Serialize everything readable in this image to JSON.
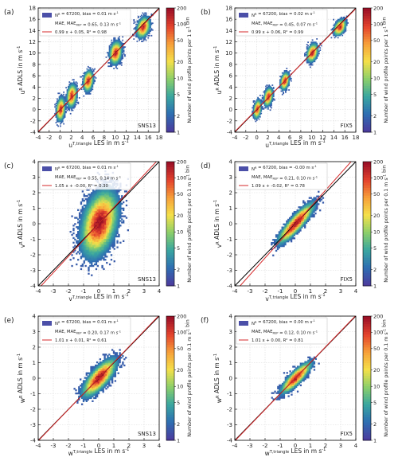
{
  "colors": {
    "identity_line": "#000000",
    "fit_line": "#d62728",
    "legend_patch": "#4b4fa8",
    "grid": "#d9d9d9",
    "colormap": [
      "#ffffff",
      "#4b3c9e",
      "#2e6fb2",
      "#3aa7a0",
      "#8ccf6a",
      "#f4e04a",
      "#f7a13a",
      "#e4432d",
      "#9c1127"
    ]
  },
  "colorbar": {
    "ticks": [
      "1",
      "2",
      "5",
      "10",
      "20",
      "50",
      "100",
      "200"
    ],
    "label_u": "Number of wind profile points per 1 s",
    "label_vw": "Number of wind profile points per 0.1 m s",
    "label_sup": "-1",
    "label_end": " bin"
  },
  "chart_data": [
    {
      "type": "heatmap",
      "panel": "(a)",
      "component": "u",
      "scheme": "SNS13",
      "legend": {
        "n": "N",
        "n_sup": "R",
        "line1": " = 67200, bias = 0.01 m s",
        "line1_sup": "-1",
        "mae_prefix": "MAE, MAE",
        "mae_sub": "REP",
        "mae_values": " = 0.65, 0.13 m s",
        "mae_sup": "-1",
        "fit": "0.99 x + 0.05, R² = 0.98"
      },
      "xlabel": {
        "main": "u",
        "sup": "T,triangle",
        "rest": " LES in m s",
        "unit_sup": "-1"
      },
      "ylabel": {
        "main": "u",
        "sup": "R",
        "rest": " ADLS in m s",
        "unit_sup": "-1"
      },
      "xlim": [
        -4,
        18
      ],
      "ylim": [
        -4,
        18
      ],
      "xticks": [
        -4,
        -2,
        0,
        2,
        4,
        6,
        8,
        10,
        12,
        14,
        16,
        18
      ],
      "fit": {
        "slope": 0.99,
        "intercept": 0.05
      },
      "clusters": [
        {
          "x": 0,
          "y": 0,
          "sx": 0.4,
          "sy": 1.0,
          "rho": 0.2,
          "peak": 0.9
        },
        {
          "x": 2,
          "y": 2.4,
          "sx": 0.45,
          "sy": 1.0,
          "rho": 0.2,
          "peak": 0.9
        },
        {
          "x": 5,
          "y": 5,
          "sx": 0.45,
          "sy": 0.9,
          "rho": 0.2,
          "peak": 0.9
        },
        {
          "x": 10,
          "y": 10,
          "sx": 0.55,
          "sy": 1.0,
          "rho": 0.2,
          "peak": 0.9
        },
        {
          "x": 15,
          "y": 14.5,
          "sx": 0.6,
          "sy": 0.9,
          "rho": 0.3,
          "peak": 0.9
        }
      ]
    },
    {
      "type": "heatmap",
      "panel": "(b)",
      "component": "u",
      "scheme": "FIX5",
      "legend": {
        "n": "N",
        "n_sup": "R",
        "line1": " = 67200, bias = 0.02 m s",
        "line1_sup": "-1",
        "mae_prefix": "MAE, MAE",
        "mae_sub": "REP",
        "mae_values": " = 0.45, 0.07 m s",
        "mae_sup": "-1",
        "fit": "0.99 x + 0.06, R² = 0.99"
      },
      "xlabel": {
        "main": "u",
        "sup": "T,triangle",
        "rest": " LES in m s",
        "unit_sup": "-1"
      },
      "ylabel": {
        "main": "u",
        "sup": "R",
        "rest": " ADLS in m s",
        "unit_sup": "-1"
      },
      "xlim": [
        -4,
        18
      ],
      "ylim": [
        -4,
        18
      ],
      "xticks": [
        -4,
        -2,
        0,
        2,
        4,
        6,
        8,
        10,
        12,
        14,
        16,
        18
      ],
      "fit": {
        "slope": 0.99,
        "intercept": 0.06
      },
      "clusters": [
        {
          "x": 0,
          "y": 0,
          "sx": 0.35,
          "sy": 0.8,
          "rho": 0.3,
          "peak": 0.9
        },
        {
          "x": 2,
          "y": 2.2,
          "sx": 0.4,
          "sy": 0.8,
          "rho": 0.3,
          "peak": 0.9
        },
        {
          "x": 5,
          "y": 5,
          "sx": 0.4,
          "sy": 0.75,
          "rho": 0.3,
          "peak": 0.9
        },
        {
          "x": 10,
          "y": 10,
          "sx": 0.5,
          "sy": 0.8,
          "rho": 0.3,
          "peak": 0.9
        },
        {
          "x": 15,
          "y": 14.5,
          "sx": 0.55,
          "sy": 0.7,
          "rho": 0.4,
          "peak": 0.9
        }
      ]
    },
    {
      "type": "heatmap",
      "panel": "(c)",
      "component": "v",
      "scheme": "SNS13",
      "legend": {
        "n": "N",
        "n_sup": "R",
        "line1": " = 67200, bias = 0.01 m s",
        "line1_sup": "-1",
        "mae_prefix": "MAE, MAE",
        "mae_sub": "REP",
        "mae_values": " = 0.55, 0.14 m s",
        "mae_sup": "-1",
        "fit": "1.05 x + -0.00, R² = 0.30"
      },
      "xlabel": {
        "main": "v",
        "sup": "T,triangle",
        "rest": " LES in m s",
        "unit_sup": "-1"
      },
      "ylabel": {
        "main": "v",
        "sup": "R",
        "rest": " ADLS in m s",
        "unit_sup": "-1"
      },
      "xlim": [
        -4,
        4
      ],
      "ylim": [
        -4,
        4
      ],
      "xticks": [
        -4,
        -3,
        -2,
        -1,
        0,
        1,
        2,
        3,
        4
      ],
      "fit": {
        "slope": 1.05,
        "intercept": 0.0
      },
      "clusters": [
        {
          "x": 0,
          "y": 0,
          "sx": 0.6,
          "sy": 1.05,
          "rho": 0.35,
          "peak": 1.0
        }
      ]
    },
    {
      "type": "heatmap",
      "panel": "(d)",
      "component": "v",
      "scheme": "FIX5",
      "legend": {
        "n": "N",
        "n_sup": "R",
        "line1": " = 67200, bias = -0.00 m s",
        "line1_sup": "-1",
        "mae_prefix": "MAE, MAE",
        "mae_sub": "REP",
        "mae_values": " = 0.21, 0.10 m s",
        "mae_sup": "-1",
        "fit": "1.09 x + -0.02, R² = 0.78"
      },
      "xlabel": {
        "main": "v",
        "sup": "T,triangle",
        "rest": " LES in m s",
        "unit_sup": "-1"
      },
      "ylabel": {
        "main": "v",
        "sup": "R",
        "rest": " ADLS in m s",
        "unit_sup": "-1"
      },
      "xlim": [
        -4,
        4
      ],
      "ylim": [
        -4,
        4
      ],
      "xticks": [
        -4,
        -3,
        -2,
        -1,
        0,
        1,
        2,
        3,
        4
      ],
      "fit": {
        "slope": 1.09,
        "intercept": -0.02
      },
      "clusters": [
        {
          "x": 0,
          "y": 0,
          "sx": 0.6,
          "sy": 0.65,
          "rho": 0.88,
          "peak": 1.0
        }
      ]
    },
    {
      "type": "heatmap",
      "panel": "(e)",
      "component": "w",
      "scheme": "SNS13",
      "legend": {
        "n": "N",
        "n_sup": "R",
        "line1": " = 67200, bias = 0.01 m s",
        "line1_sup": "-1",
        "mae_prefix": "MAE, MAE",
        "mae_sub": "REP",
        "mae_values": " = 0.20, 0.17 m s",
        "mae_sup": "-1",
        "fit": "1.01 x + 0.01, R² = 0.61"
      },
      "xlabel": {
        "main": "w",
        "sup": "T,triangle",
        "rest": " LES in m s",
        "unit_sup": "-1"
      },
      "ylabel": {
        "main": "w",
        "sup": "R",
        "rest": " ADLS in m s",
        "unit_sup": "-1"
      },
      "xlim": [
        -4,
        4
      ],
      "ylim": [
        -4,
        4
      ],
      "xticks": [
        -4,
        -3,
        -2,
        -1,
        0,
        1,
        2,
        3,
        4
      ],
      "fit": {
        "slope": 1.01,
        "intercept": 0.01
      },
      "clusters": [
        {
          "x": 0,
          "y": 0,
          "sx": 0.55,
          "sy": 0.6,
          "rho": 0.75,
          "peak": 1.0
        }
      ]
    },
    {
      "type": "heatmap",
      "panel": "(f)",
      "component": "w",
      "scheme": "FIX5",
      "legend": {
        "n": "N",
        "n_sup": "R",
        "line1": " = 67200, bias = 0.00 m s",
        "line1_sup": "-1",
        "mae_prefix": "MAE, MAE",
        "mae_sub": "REP",
        "mae_values": " = 0.12, 0.10 m s",
        "mae_sup": "-1",
        "fit": "1.01 x + 0.00, R² = 0.81"
      },
      "xlabel": {
        "main": "w",
        "sup": "T,triangle",
        "rest": " LES in m s",
        "unit_sup": "-1"
      },
      "ylabel": {
        "main": "w",
        "sup": "R",
        "rest": " ADLS in m s",
        "unit_sup": "-1"
      },
      "xlim": [
        -4,
        4
      ],
      "ylim": [
        -4,
        4
      ],
      "xticks": [
        -4,
        -3,
        -2,
        -1,
        0,
        1,
        2,
        3,
        4
      ],
      "fit": {
        "slope": 1.01,
        "intercept": 0.0
      },
      "clusters": [
        {
          "x": 0,
          "y": 0,
          "sx": 0.5,
          "sy": 0.5,
          "rho": 0.85,
          "peak": 0.95
        }
      ]
    }
  ]
}
